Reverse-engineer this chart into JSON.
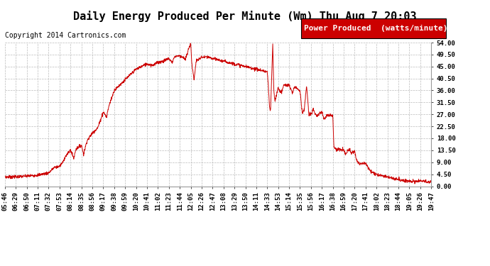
{
  "title": "Daily Energy Produced Per Minute (Wm) Thu Aug 7 20:03",
  "copyright": "Copyright 2014 Cartronics.com",
  "legend_label": "Power Produced  (watts/minute)",
  "legend_bg": "#cc0000",
  "legend_fg": "#ffffff",
  "line_color": "#cc0000",
  "bg_color": "#ffffff",
  "plot_bg": "#ffffff",
  "grid_color": "#bbbbbb",
  "yticks": [
    0.0,
    4.5,
    9.0,
    13.5,
    18.0,
    22.5,
    27.0,
    31.5,
    36.0,
    40.5,
    45.0,
    49.5,
    54.0
  ],
  "ylim": [
    0.0,
    54.0
  ],
  "xtick_labels": [
    "05:46",
    "06:29",
    "06:50",
    "07:11",
    "07:32",
    "07:53",
    "08:14",
    "08:35",
    "08:56",
    "09:17",
    "09:38",
    "09:59",
    "10:20",
    "10:41",
    "11:02",
    "11:23",
    "11:44",
    "12:05",
    "12:26",
    "12:47",
    "13:08",
    "13:29",
    "13:50",
    "14:11",
    "14:33",
    "14:53",
    "15:14",
    "15:35",
    "15:56",
    "16:17",
    "16:38",
    "16:59",
    "17:20",
    "17:41",
    "18:02",
    "18:23",
    "18:44",
    "19:05",
    "19:26",
    "19:47"
  ],
  "title_fontsize": 11,
  "copyright_fontsize": 7,
  "tick_fontsize": 6.5,
  "legend_fontsize": 8
}
